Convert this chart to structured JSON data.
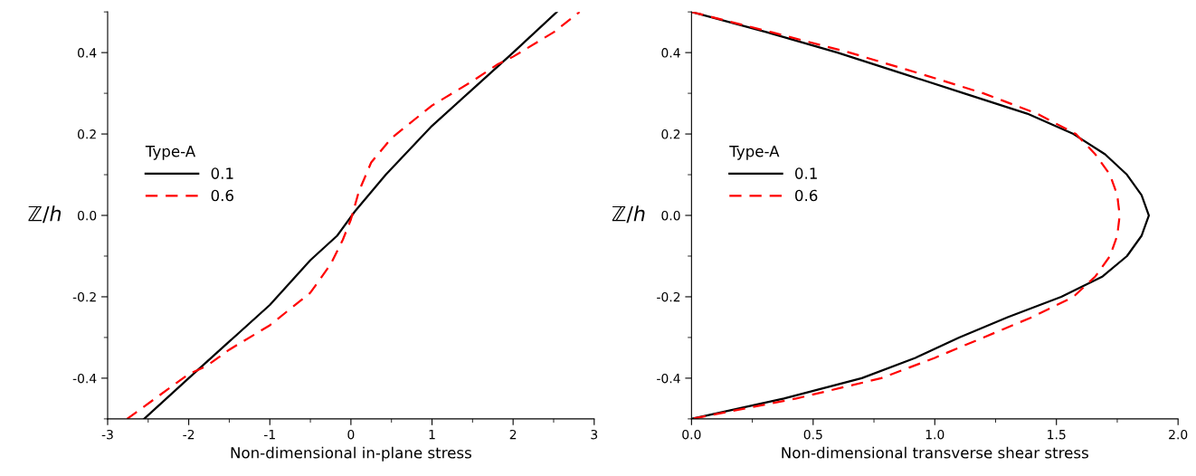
{
  "chart_data": [
    {
      "type": "line",
      "xlabel": "Non-dimensional in-plane stress",
      "ylabel": "ℤ/ℎ",
      "legend_title": "Type-A",
      "legend": "left",
      "marker": "none",
      "xlim": [
        -3,
        3
      ],
      "xticks": [
        -3,
        -2,
        -1,
        0,
        1,
        2,
        3
      ],
      "ylim": [
        -0.5,
        0.5
      ],
      "yticks": [
        -0.4,
        -0.2,
        {
          "value": 0,
          "label": "0.0"
        },
        0.2,
        0.4
      ],
      "series": [
        {
          "name": "0.1",
          "color": "#000000",
          "line_style": "solid",
          "x": [
            -2.55,
            -2.0,
            -1.5,
            -1.0,
            -0.5,
            -0.17,
            0.05,
            0.43,
            1.0,
            1.5,
            2.0,
            2.54
          ],
          "values": [
            -0.5,
            -0.4,
            -0.31,
            -0.22,
            -0.11,
            -0.05,
            0.01,
            0.1,
            0.22,
            0.31,
            0.4,
            0.5
          ]
        },
        {
          "name": "0.6",
          "color": "#ff0000",
          "line_style": "dashed",
          "x": [
            -2.76,
            -2.0,
            -1.78,
            -1.5,
            -1.0,
            -0.5,
            -0.25,
            -0.1,
            0.0,
            0.1,
            0.25,
            0.5,
            1.0,
            1.5,
            1.8,
            2.0,
            2.5,
            2.82
          ],
          "values": [
            -0.5,
            -0.39,
            -0.37,
            -0.33,
            -0.27,
            -0.19,
            -0.12,
            -0.06,
            -0.01,
            0.06,
            0.13,
            0.19,
            0.27,
            0.33,
            0.37,
            0.39,
            0.45,
            0.5
          ]
        }
      ]
    },
    {
      "type": "line",
      "xlabel": "Non-dimensional transverse shear stress",
      "ylabel": "ℤ/ℎ",
      "legend_title": "Type-A",
      "legend": "left",
      "marker": "none",
      "xlim": [
        0,
        2
      ],
      "xticks": [
        {
          "value": 0,
          "label": "0.0"
        },
        0.5,
        {
          "value": 1,
          "label": "1.0"
        },
        1.5,
        {
          "value": 2,
          "label": "2.0"
        }
      ],
      "ylim": [
        -0.5,
        0.5
      ],
      "yticks": [
        -0.4,
        -0.2,
        {
          "value": 0,
          "label": "0.0"
        },
        0.2,
        0.4
      ],
      "series": [
        {
          "name": "0.1",
          "color": "#000000",
          "line_style": "solid",
          "x": [
            0.0,
            0.31,
            0.6,
            0.86,
            1.12,
            1.38,
            1.57,
            1.7,
            1.79,
            1.85,
            1.88,
            1.85,
            1.79,
            1.69,
            1.52,
            1.3,
            1.1,
            0.92,
            0.7,
            0.38,
            0.0
          ],
          "values": [
            0.5,
            0.45,
            0.4,
            0.35,
            0.3,
            0.25,
            0.2,
            0.15,
            0.1,
            0.05,
            0.0,
            -0.05,
            -0.1,
            -0.15,
            -0.2,
            -0.25,
            -0.3,
            -0.35,
            -0.4,
            -0.45,
            -0.5
          ]
        },
        {
          "name": "0.6",
          "color": "#ff0000",
          "line_style": "dashed",
          "x": [
            0.0,
            0.33,
            0.65,
            0.93,
            1.2,
            1.42,
            1.58,
            1.66,
            1.72,
            1.75,
            1.76,
            1.75,
            1.72,
            1.66,
            1.57,
            1.4,
            1.2,
            1.0,
            0.78,
            0.43,
            0.0
          ],
          "values": [
            0.5,
            0.45,
            0.4,
            0.35,
            0.3,
            0.25,
            0.2,
            0.15,
            0.1,
            0.05,
            0.0,
            -0.05,
            -0.1,
            -0.15,
            -0.2,
            -0.25,
            -0.3,
            -0.35,
            -0.4,
            -0.45,
            -0.5
          ]
        }
      ]
    }
  ]
}
